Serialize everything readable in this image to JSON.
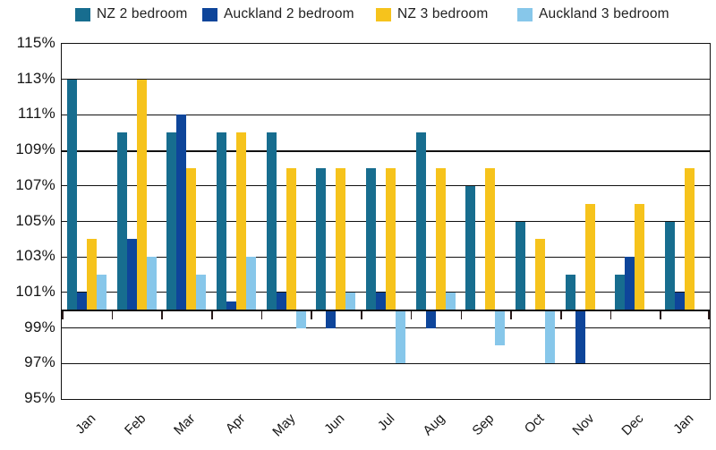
{
  "chart_data": {
    "type": "bar",
    "title": "",
    "categories": [
      "Jan",
      "Feb",
      "Mar",
      "Apr",
      "May",
      "Jun",
      "Jul",
      "Aug",
      "Sep",
      "Oct",
      "Nov",
      "Dec",
      "Jan"
    ],
    "y_axis": {
      "min": 95,
      "max": 115,
      "step": 2,
      "unit": "%",
      "baseline": 100,
      "tick_labels": [
        "115%",
        "113%",
        "111%",
        "109%",
        "107%",
        "105%",
        "103%",
        "101%",
        "99%",
        "97%",
        "95%"
      ]
    },
    "grid": true,
    "legend_position": "top",
    "series": [
      {
        "name": "NZ 2 bedroom",
        "color": "#176D8F",
        "values": [
          113,
          110,
          110,
          110,
          110,
          108,
          108,
          110,
          107,
          105,
          102,
          102,
          105
        ]
      },
      {
        "name": "Auckland 2 bedroom",
        "color": "#0E459A",
        "values": [
          101,
          104,
          111,
          100.5,
          101,
          99,
          101,
          99,
          100,
          100,
          97,
          103,
          101
        ]
      },
      {
        "name": "NZ 3 bedroom",
        "color": "#F6C31C",
        "values": [
          104,
          113,
          108,
          110,
          108,
          108,
          108,
          108,
          108,
          104,
          106,
          106,
          108
        ]
      },
      {
        "name": "Auckland 3 bedroom",
        "color": "#87C7EA",
        "values": [
          102,
          103,
          102,
          103,
          99,
          101,
          97,
          101,
          98,
          97,
          100,
          100,
          100
        ]
      }
    ],
    "colors": {
      "axis": "#111111",
      "grid": "#111111",
      "text": "#1a1a1a"
    }
  },
  "legend_layout": {
    "item_lefts": [
      84,
      226,
      420,
      578
    ]
  }
}
